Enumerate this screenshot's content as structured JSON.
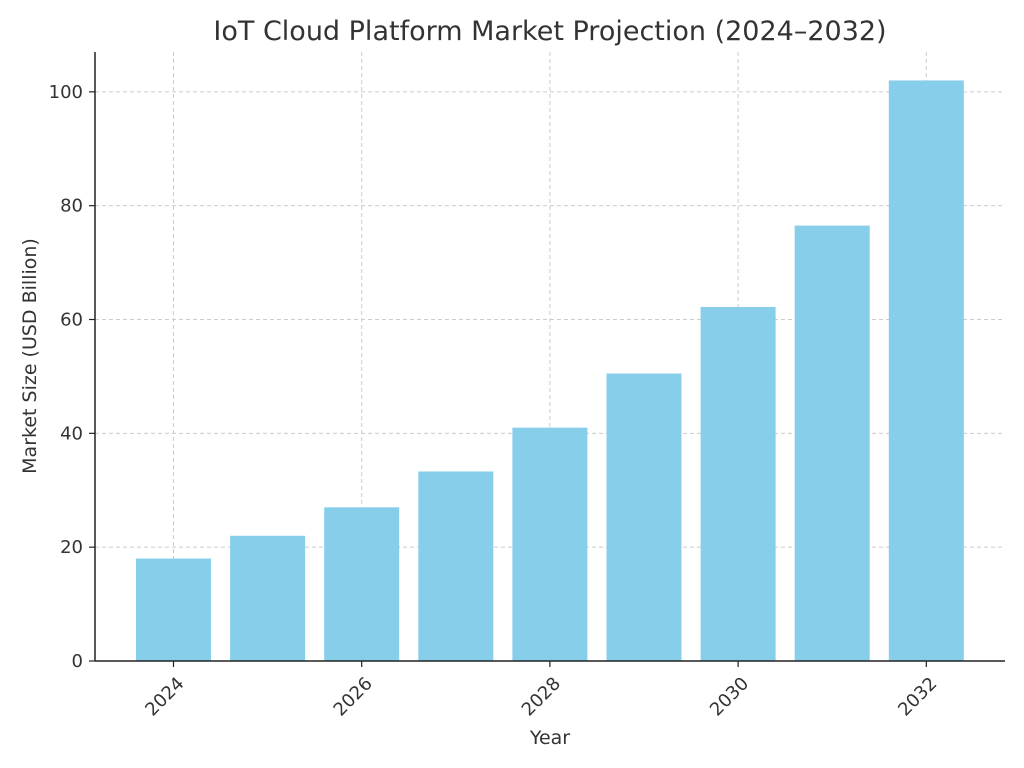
{
  "chart_data": {
    "type": "bar",
    "title": "IoT Cloud Platform Market Projection (2024–2032)",
    "xlabel": "Year",
    "ylabel": "Market Size (USD Billion)",
    "categories": [
      "2024",
      "2025",
      "2026",
      "2027",
      "2028",
      "2029",
      "2030",
      "2031",
      "2032"
    ],
    "values": [
      18.0,
      22.0,
      27.0,
      33.3,
      41.0,
      50.5,
      62.2,
      76.5,
      102.0
    ],
    "ylim": [
      0,
      107
    ],
    "x_ticks": [
      "2024",
      "2026",
      "2028",
      "2030",
      "2032"
    ],
    "y_ticks": [
      0,
      20,
      40,
      60,
      80,
      100
    ],
    "grid": true,
    "bar_color": "#87CEEB",
    "x_tick_rotation": "45deg"
  }
}
